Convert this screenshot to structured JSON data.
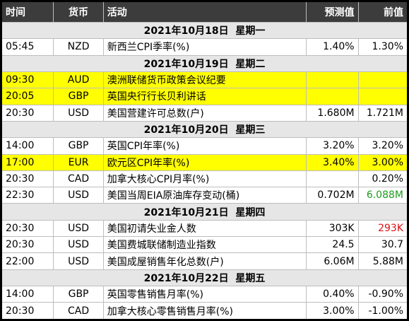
{
  "header": [
    "时间",
    "货币",
    "活动",
    "预测值",
    "前值"
  ],
  "groups": [
    {
      "date": "2021年10月18日  星期一",
      "events": [
        {
          "time": "05:45",
          "currency": "NZD",
          "event": "新西兰CPI季率(%)",
          "forecast": "1.40%",
          "previous": "1.30%"
        }
      ]
    },
    {
      "date": "2021年10月19日  星期二",
      "events": [
        {
          "time": "09:30",
          "currency": "AUD",
          "event": "澳洲联储货币政策会议纪要",
          "highlight": true
        },
        {
          "time": "20:05",
          "currency": "GBP",
          "event": "英国央行行长贝利讲话",
          "highlight": true
        },
        {
          "time": "20:30",
          "currency": "USD",
          "event": "美国营建许可总数(户)",
          "forecast": "1.680M",
          "previous": "1.721M"
        }
      ]
    },
    {
      "date": "2021年10月20日  星期三",
      "events": [
        {
          "time": "14:00",
          "currency": "GBP",
          "event": "英国CPI年率(%)",
          "forecast": "3.20%",
          "previous": "3.20%"
        },
        {
          "time": "17:00",
          "currency": "EUR",
          "event": "欧元区CPI年率(%)",
          "forecast": "3.40%",
          "previous": "3.00%",
          "highlight": true
        },
        {
          "time": "20:30",
          "currency": "CAD",
          "event": "加拿大核心CPI月率(%)",
          "previous": "0.20%"
        },
        {
          "time": "22:30",
          "currency": "USD",
          "event": "美国当周EIA原油库存变动(桶)",
          "forecast": "0.702M",
          "previous": "6.088M",
          "previous_color": "#1f9a1f"
        }
      ]
    },
    {
      "date": "2021年10月21日  星期四",
      "events": [
        {
          "time": "20:30",
          "currency": "USD",
          "event": "美国初请失业金人数",
          "forecast": "303K",
          "previous": "293K",
          "previous_color": "#e01010"
        },
        {
          "time": "20:30",
          "currency": "USD",
          "event": "美国费城联储制造业指数",
          "forecast": "24.5",
          "previous": "30.7"
        },
        {
          "time": "22:00",
          "currency": "USD",
          "event": "美国成屋销售年化总数(户)",
          "forecast": "6.06M",
          "previous": "5.88M"
        }
      ]
    },
    {
      "date": "2021年10月22日  星期五",
      "events": [
        {
          "time": "14:00",
          "currency": "GBP",
          "event": "英国零售销售月率(%)",
          "forecast": "0.40%",
          "previous": "-0.90%"
        },
        {
          "time": "20:30",
          "currency": "CAD",
          "event": "加拿大核心零售销售月率(%)",
          "forecast": "3.00%",
          "previous": "-1.00%"
        }
      ]
    }
  ]
}
